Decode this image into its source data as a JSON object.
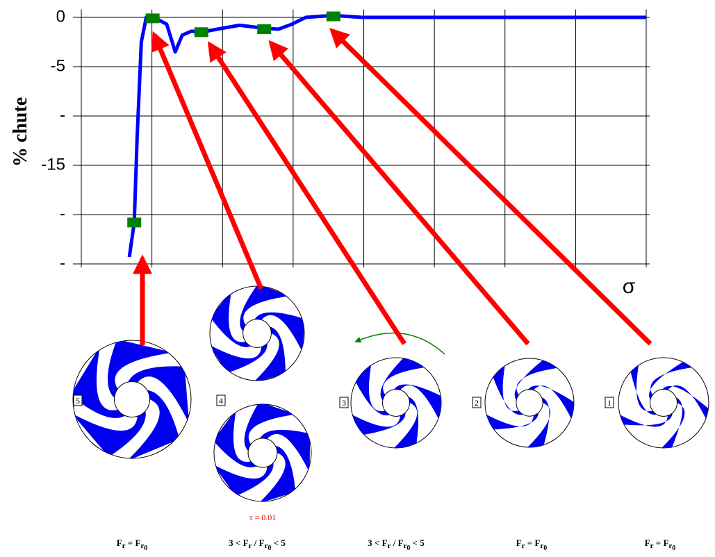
{
  "chart_data": {
    "type": "line",
    "y_label": "% chute",
    "x_label": "σ",
    "xlim": [
      0,
      8
    ],
    "xticks": [
      0,
      1,
      2,
      3,
      4,
      5,
      6,
      7,
      8
    ],
    "ylim": [
      -25,
      0.8
    ],
    "yticks": [
      0,
      -5,
      {
        "value": -10,
        "label": "-"
      },
      -15,
      {
        "value": -20,
        "label": "-"
      },
      {
        "value": -25,
        "label": "-"
      }
    ],
    "grid": true,
    "series": [
      {
        "color": "#0000ff",
        "style": "line",
        "x": [
          0.68,
          0.75,
          0.79,
          0.85,
          0.92,
          1.03,
          1.21,
          1.33,
          1.43,
          1.56,
          1.7,
          2.0,
          2.24,
          2.59,
          2.79,
          2.98,
          3.18,
          3.57,
          3.97,
          8.0
        ],
        "values": [
          -24.3,
          -20.8,
          -12.3,
          -2.5,
          0,
          0,
          -0.7,
          -3.5,
          -1.8,
          -1.4,
          -1.5,
          -1.1,
          -0.8,
          -1.1,
          -1.2,
          -0.7,
          0,
          0.2,
          0,
          0
        ]
      },
      {
        "color": "#008000",
        "style": "markers",
        "x": [
          0.75,
          1.01,
          1.7,
          2.59,
          3.57
        ],
        "values": [
          -20.8,
          -0.1,
          -1.5,
          -1.2,
          0.1
        ]
      }
    ]
  },
  "impellers": [
    {
      "number": "5",
      "formula": [
        {
          "text": "F",
          "sub": "r"
        },
        {
          "text": " = "
        },
        {
          "text": "F",
          "sub": "r",
          "subsub": "0"
        }
      ]
    },
    {
      "number": "4",
      "formula": [
        {
          "text": "3 < "
        },
        {
          "text": "F",
          "sub": "r"
        },
        {
          "text": " / "
        },
        {
          "text": "F",
          "sub": "r",
          "subsub": "0"
        },
        {
          "text": " < 5"
        }
      ]
    },
    {
      "number": "3",
      "formula": [
        {
          "text": "3 < "
        },
        {
          "text": "F",
          "sub": "r"
        },
        {
          "text": " / "
        },
        {
          "text": "F",
          "sub": "r",
          "subsub": "0"
        },
        {
          "text": " < 5"
        }
      ]
    },
    {
      "number": "2",
      "formula": [
        {
          "text": "F",
          "sub": "r"
        },
        {
          "text": " = "
        },
        {
          "text": "F",
          "sub": "r",
          "subsub": "0"
        }
      ]
    },
    {
      "number": "1",
      "formula": [
        {
          "text": "F",
          "sub": "r"
        },
        {
          "text": " = "
        },
        {
          "text": "F",
          "sub": "r",
          "subsub": "0"
        }
      ]
    }
  ],
  "note": "τ = 0.01"
}
